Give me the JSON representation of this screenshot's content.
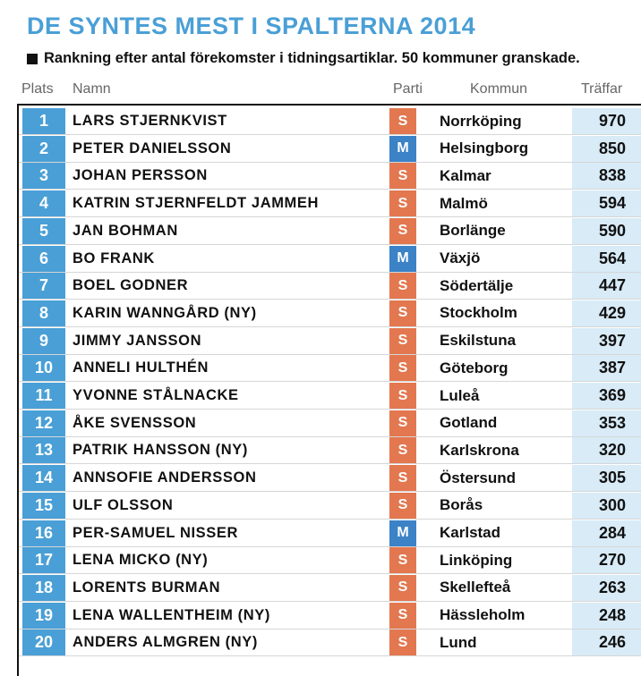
{
  "title": "DE SYNTES MEST I SPALTERNA 2014",
  "subtitle": "Rankning efter antal förekomster i tidningsartiklar. 50 kommuner granskade.",
  "headers": {
    "plats": "Plats",
    "namn": "Namn",
    "parti": "Parti",
    "kommun": "Kommun",
    "traffar": "Träffar"
  },
  "colors": {
    "title": "#4a9fd6",
    "rank_bg": "#4a9fd6",
    "party_S": "#e3774f",
    "party_M": "#3b82c6",
    "hits_bg": "#d8ebf7"
  },
  "chart_data": {
    "type": "table",
    "columns": [
      "Plats",
      "Namn",
      "Parti",
      "Kommun",
      "Träffar"
    ],
    "rows": [
      {
        "rank": "1",
        "name": "LARS STJERNKVIST",
        "party": "S",
        "kommun": "Norrköping",
        "hits": 970
      },
      {
        "rank": "2",
        "name": "PETER DANIELSSON",
        "party": "M",
        "kommun": "Helsingborg",
        "hits": 850
      },
      {
        "rank": "3",
        "name": "JOHAN PERSSON",
        "party": "S",
        "kommun": "Kalmar",
        "hits": 838
      },
      {
        "rank": "4",
        "name": "KATRIN STJERNFELDT JAMMEH",
        "party": "S",
        "kommun": "Malmö",
        "hits": 594
      },
      {
        "rank": "5",
        "name": "JAN BOHMAN",
        "party": "S",
        "kommun": "Borlänge",
        "hits": 590
      },
      {
        "rank": "6",
        "name": "BO FRANK",
        "party": "M",
        "kommun": "Växjö",
        "hits": 564
      },
      {
        "rank": "7",
        "name": "BOEL GODNER",
        "party": "S",
        "kommun": "Södertälje",
        "hits": 447
      },
      {
        "rank": "8",
        "name": "KARIN WANNGÅRD (NY)",
        "party": "S",
        "kommun": "Stockholm",
        "hits": 429
      },
      {
        "rank": "9",
        "name": "JIMMY JANSSON",
        "party": "S",
        "kommun": "Eskilstuna",
        "hits": 397
      },
      {
        "rank": "10",
        "name": "ANNELI HULTHÉN",
        "party": "S",
        "kommun": "Göteborg",
        "hits": 387
      },
      {
        "rank": "11",
        "name": "YVONNE STÅLNACKE",
        "party": "S",
        "kommun": "Luleå",
        "hits": 369
      },
      {
        "rank": "12",
        "name": "ÅKE SVENSSON",
        "party": "S",
        "kommun": "Gotland",
        "hits": 353
      },
      {
        "rank": "13",
        "name": "PATRIK HANSSON (NY)",
        "party": "S",
        "kommun": "Karlskrona",
        "hits": 320
      },
      {
        "rank": "14",
        "name": "ANNSOFIE ANDERSSON",
        "party": "S",
        "kommun": "Östersund",
        "hits": 305
      },
      {
        "rank": "15",
        "name": "ULF OLSSON",
        "party": "S",
        "kommun": "Borås",
        "hits": 300
      },
      {
        "rank": "16",
        "name": "PER-SAMUEL NISSER",
        "party": "M",
        "kommun": "Karlstad",
        "hits": 284
      },
      {
        "rank": "17",
        "name": "LENA MICKO (NY)",
        "party": "S",
        "kommun": "Linköping",
        "hits": 270
      },
      {
        "rank": "18",
        "name": "LORENTS BURMAN",
        "party": "S",
        "kommun": "Skellefteå",
        "hits": 263
      },
      {
        "rank": "19",
        "name": "LENA WALLENTHEIM (NY)",
        "party": "S",
        "kommun": "Hässleholm",
        "hits": 248
      },
      {
        "rank": "20",
        "name": "ANDERS ALMGREN (NY)",
        "party": "S",
        "kommun": "Lund",
        "hits": 246
      }
    ]
  }
}
